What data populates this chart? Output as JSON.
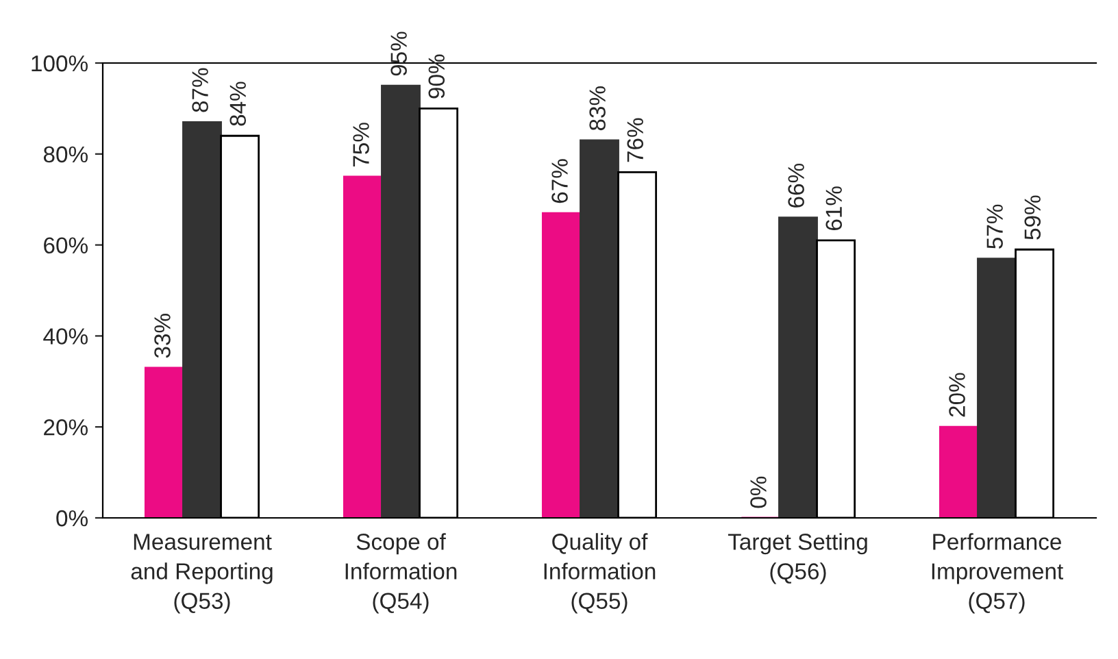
{
  "chart_data": {
    "type": "bar",
    "categories": [
      "Measurement\nand Reporting\n(Q53)",
      "Scope of\nInformation\n(Q54)",
      "Quality of\nInformation\n(Q55)",
      "Target Setting\n(Q56)",
      "Performance\nImprovement\n(Q57)"
    ],
    "series": [
      {
        "color": "#ec0c84",
        "values": [
          33,
          75,
          67,
          0,
          20
        ],
        "value_labels": [
          "33%",
          "75%",
          "67%",
          "0%",
          "20%"
        ]
      },
      {
        "color": "#333333",
        "values": [
          87,
          95,
          83,
          66,
          57
        ],
        "value_labels": [
          "87%",
          "95%",
          "83%",
          "66%",
          "57%"
        ]
      },
      {
        "color": "#ffffff",
        "values": [
          84,
          90,
          76,
          61,
          59
        ],
        "value_labels": [
          "84%",
          "90%",
          "76%",
          "61%",
          "59%"
        ]
      }
    ],
    "ylim": [
      0,
      100
    ],
    "yticks": [
      {
        "value": 0,
        "label": "0%"
      },
      {
        "value": 20,
        "label": "20%"
      },
      {
        "value": 40,
        "label": "40%"
      },
      {
        "value": 60,
        "label": "60%"
      },
      {
        "value": 80,
        "label": "80%"
      },
      {
        "value": 100,
        "label": "100%"
      }
    ],
    "grid": false,
    "legend": false
  }
}
